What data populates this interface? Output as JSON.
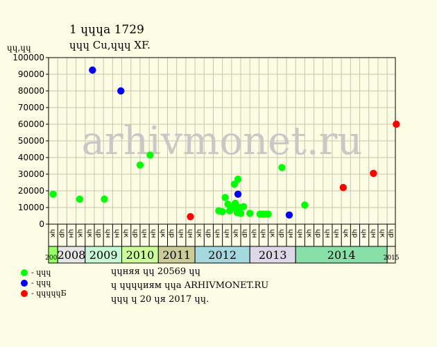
{
  "header": {
    "title": "1 ɥɥɥa 1729",
    "subtitle": "ɥɥɥ Cu,ɥɥɥ XF.",
    "unit": "ɥɥ,ɥɥ"
  },
  "watermark": "arhivmonet.ru",
  "legend": [
    {
      "label": "- ɥɥɥ",
      "color": "#00ff00"
    },
    {
      "label": "- ɥɥɥ",
      "color": "#0000ff"
    },
    {
      "label": "- ɥɥɥɥɥБ",
      "color": "#ff0000"
    }
  ],
  "footer": {
    "line1": "ɥɥняя ɥɥ 20569 ɥɥ",
    "line2": "ɥ ɥɥɥɥиям ɥɥa ARHIVMONET.RU",
    "line3": "ɥɥɥ ɥ 20 ɥя 2017 ɥɥ."
  },
  "chart_data": {
    "type": "scatter",
    "ylim": [
      0,
      100000
    ],
    "yticks": [
      0,
      10000,
      20000,
      30000,
      40000,
      50000,
      60000,
      70000,
      80000,
      90000,
      100000
    ],
    "ytick_labels": [
      "0",
      "10000",
      "20000",
      "30000",
      "40000",
      "50000",
      "60000",
      "70000",
      "80000",
      "90000",
      "100000"
    ],
    "x_slots": [
      "ɥк",
      "ɥp",
      "ɥн",
      "ɥк",
      "ɥк",
      "ɥp",
      "ɥн",
      "ɥн",
      "ɥк",
      "ɥp",
      "ɥн",
      "ɥн",
      "ɥк",
      "ɥp",
      "ɥн",
      "ɥн",
      "ɥк",
      "ɥp",
      "ɥн",
      "ɥн",
      "ɥк",
      "ɥp",
      "ɥн",
      "ɥн",
      "ɥк",
      "ɥp",
      "ɥн",
      "ɥн",
      "ɥк",
      "ɥp",
      "ɥн",
      "ɥн",
      "ɥк",
      "ɥp",
      "ɥн",
      "ɥн",
      "ɥк",
      "ɥp"
    ],
    "years": [
      {
        "label": "2007",
        "start": 0,
        "end": 1,
        "color": "#99ff66",
        "small": true
      },
      {
        "label": "2008",
        "start": 1,
        "end": 4,
        "color": "#e6e6e6",
        "small": false
      },
      {
        "label": "2009",
        "start": 4,
        "end": 8,
        "color": "#c8f7d7",
        "small": false
      },
      {
        "label": "2010",
        "start": 8,
        "end": 12,
        "color": "#ccff99",
        "small": false
      },
      {
        "label": "2011",
        "start": 12,
        "end": 16,
        "color": "#cccc99",
        "small": false
      },
      {
        "label": "2012",
        "start": 16,
        "end": 22,
        "color": "#a6d8e0",
        "small": false
      },
      {
        "label": "2013",
        "start": 22,
        "end": 27,
        "color": "#ddd8e8",
        "small": false
      },
      {
        "label": "2014",
        "start": 27,
        "end": 37,
        "color": "#88e0a8",
        "small": false
      },
      {
        "label": "2015",
        "start": 37,
        "end": 38,
        "color": "#eef2d8",
        "small": true
      }
    ],
    "series": [
      {
        "name": "- ɥɥɥ",
        "color": "#00ff00",
        "points": [
          {
            "x": 0.5,
            "y": 18000
          },
          {
            "x": 3.4,
            "y": 15000
          },
          {
            "x": 6.1,
            "y": 15000
          },
          {
            "x": 10.0,
            "y": 35500
          },
          {
            "x": 11.1,
            "y": 41500
          },
          {
            "x": 18.6,
            "y": 8000
          },
          {
            "x": 19.0,
            "y": 7500
          },
          {
            "x": 19.3,
            "y": 16000
          },
          {
            "x": 19.6,
            "y": 12000
          },
          {
            "x": 19.8,
            "y": 8000
          },
          {
            "x": 20.1,
            "y": 10000
          },
          {
            "x": 20.3,
            "y": 24000
          },
          {
            "x": 20.4,
            "y": 12500
          },
          {
            "x": 20.6,
            "y": 7000
          },
          {
            "x": 20.7,
            "y": 27000
          },
          {
            "x": 20.8,
            "y": 10000
          },
          {
            "x": 21.0,
            "y": 6500
          },
          {
            "x": 21.3,
            "y": 10500
          },
          {
            "x": 22.0,
            "y": 6500
          },
          {
            "x": 23.1,
            "y": 6000
          },
          {
            "x": 23.4,
            "y": 6000
          },
          {
            "x": 23.7,
            "y": 6000
          },
          {
            "x": 24.0,
            "y": 6000
          },
          {
            "x": 25.5,
            "y": 34000
          },
          {
            "x": 28.0,
            "y": 11500
          }
        ]
      },
      {
        "name": "- ɥɥɥ",
        "color": "#0000ff",
        "points": [
          {
            "x": 4.8,
            "y": 92500
          },
          {
            "x": 7.9,
            "y": 80000
          },
          {
            "x": 20.7,
            "y": 18000
          },
          {
            "x": 26.3,
            "y": 5500
          }
        ]
      },
      {
        "name": "- ɥɥɥɥɥБ",
        "color": "#ff0000",
        "points": [
          {
            "x": 15.5,
            "y": 4500
          },
          {
            "x": 32.2,
            "y": 22000
          },
          {
            "x": 35.5,
            "y": 30500
          },
          {
            "x": 38.0,
            "y": 60000
          }
        ]
      }
    ]
  }
}
